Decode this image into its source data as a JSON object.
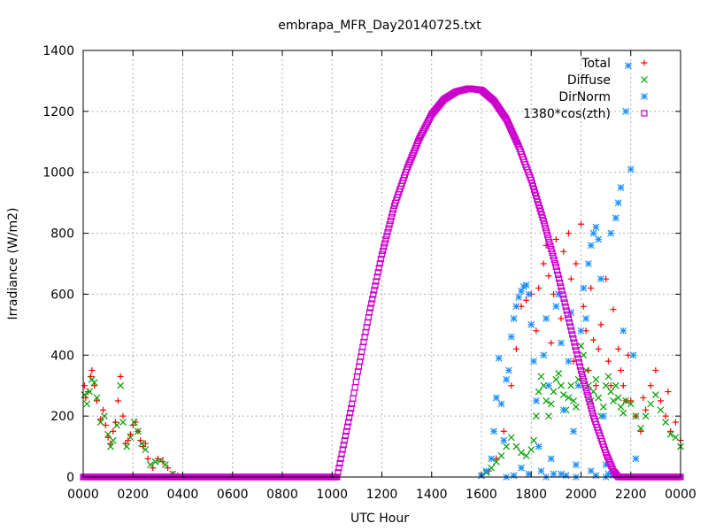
{
  "chart_data": {
    "type": "scatter",
    "title": "embrapa_MFR_Day20140725.txt",
    "xlabel": "UTC Hour",
    "ylabel": "Irradiance (W/m2)",
    "xlim": [
      0,
      24
    ],
    "ylim": [
      0,
      1400
    ],
    "x_ticks": [
      {
        "value": 0,
        "label": "0000"
      },
      {
        "value": 2,
        "label": "0200"
      },
      {
        "value": 4,
        "label": "0400"
      },
      {
        "value": 6,
        "label": "0600"
      },
      {
        "value": 8,
        "label": "0800"
      },
      {
        "value": 10,
        "label": "1000"
      },
      {
        "value": 12,
        "label": "1200"
      },
      {
        "value": 14,
        "label": "1400"
      },
      {
        "value": 16,
        "label": "1600"
      },
      {
        "value": 18,
        "label": "1800"
      },
      {
        "value": 20,
        "label": "2000"
      },
      {
        "value": 22,
        "label": "2200"
      },
      {
        "value": 24,
        "label": "0000"
      }
    ],
    "y_ticks": [
      0,
      200,
      400,
      600,
      800,
      1000,
      1200,
      1400
    ],
    "grid": true,
    "legend_position": "top-right",
    "series": [
      {
        "name": "Total",
        "marker": "plus",
        "color": "#ff0000",
        "points": [
          [
            0.05,
            300
          ],
          [
            0.1,
            260
          ],
          [
            0.2,
            280
          ],
          [
            0.3,
            330
          ],
          [
            0.35,
            350
          ],
          [
            0.45,
            300
          ],
          [
            0.55,
            250
          ],
          [
            0.7,
            190
          ],
          [
            0.8,
            220
          ],
          [
            0.9,
            170
          ],
          [
            1.0,
            130
          ],
          [
            1.1,
            110
          ],
          [
            1.2,
            150
          ],
          [
            1.3,
            180
          ],
          [
            1.4,
            250
          ],
          [
            1.5,
            330
          ],
          [
            1.6,
            200
          ],
          [
            1.7,
            110
          ],
          [
            1.8,
            120
          ],
          [
            1.9,
            140
          ],
          [
            2.0,
            170
          ],
          [
            2.1,
            180
          ],
          [
            2.2,
            150
          ],
          [
            2.3,
            120
          ],
          [
            2.4,
            100
          ],
          [
            2.5,
            110
          ],
          [
            2.6,
            60
          ],
          [
            2.8,
            30
          ],
          [
            3.0,
            60
          ],
          [
            3.2,
            50
          ],
          [
            3.4,
            30
          ],
          [
            3.6,
            10
          ],
          [
            3.8,
            5
          ],
          [
            16.0,
            5
          ],
          [
            16.3,
            20
          ],
          [
            16.6,
            60
          ],
          [
            16.9,
            150
          ],
          [
            17.2,
            300
          ],
          [
            17.4,
            420
          ],
          [
            17.6,
            560
          ],
          [
            17.8,
            580
          ],
          [
            18.0,
            600
          ],
          [
            18.2,
            480
          ],
          [
            18.3,
            620
          ],
          [
            18.5,
            700
          ],
          [
            18.6,
            760
          ],
          [
            18.7,
            660
          ],
          [
            18.9,
            600
          ],
          [
            19.0,
            780
          ],
          [
            19.2,
            520
          ],
          [
            19.3,
            740
          ],
          [
            19.5,
            800
          ],
          [
            19.6,
            650
          ],
          [
            19.8,
            700
          ],
          [
            20.0,
            830
          ],
          [
            20.1,
            560
          ],
          [
            20.2,
            480
          ],
          [
            20.4,
            620
          ],
          [
            20.5,
            450
          ],
          [
            20.6,
            300
          ],
          [
            20.7,
            420
          ],
          [
            20.8,
            500
          ],
          [
            21.0,
            650
          ],
          [
            21.1,
            380
          ],
          [
            21.2,
            300
          ],
          [
            21.3,
            550
          ],
          [
            21.5,
            420
          ],
          [
            21.6,
            350
          ],
          [
            21.7,
            300
          ],
          [
            21.8,
            250
          ],
          [
            22.0,
            250
          ],
          [
            22.2,
            200
          ],
          [
            22.4,
            150
          ],
          [
            22.6,
            220
          ],
          [
            22.8,
            300
          ],
          [
            23.0,
            350
          ],
          [
            23.2,
            250
          ],
          [
            23.4,
            200
          ],
          [
            23.6,
            150
          ],
          [
            23.8,
            180
          ],
          [
            24.0,
            120
          ],
          [
            18.8,
            440
          ],
          [
            19.7,
            380
          ],
          [
            20.3,
            350
          ],
          [
            21.9,
            400
          ],
          [
            22.5,
            260
          ],
          [
            23.5,
            280
          ]
        ]
      },
      {
        "name": "Diffuse",
        "marker": "cross",
        "color": "#00a000",
        "points": [
          [
            0.05,
            270
          ],
          [
            0.15,
            240
          ],
          [
            0.25,
            280
          ],
          [
            0.35,
            320
          ],
          [
            0.45,
            310
          ],
          [
            0.55,
            260
          ],
          [
            0.7,
            180
          ],
          [
            0.85,
            200
          ],
          [
            1.0,
            140
          ],
          [
            1.1,
            100
          ],
          [
            1.2,
            120
          ],
          [
            1.35,
            170
          ],
          [
            1.5,
            300
          ],
          [
            1.6,
            180
          ],
          [
            1.75,
            100
          ],
          [
            1.9,
            130
          ],
          [
            2.05,
            180
          ],
          [
            2.2,
            150
          ],
          [
            2.35,
            110
          ],
          [
            2.5,
            90
          ],
          [
            2.7,
            40
          ],
          [
            2.9,
            50
          ],
          [
            3.1,
            55
          ],
          [
            3.3,
            40
          ],
          [
            3.6,
            10
          ],
          [
            16.0,
            5
          ],
          [
            16.2,
            15
          ],
          [
            16.4,
            30
          ],
          [
            16.6,
            50
          ],
          [
            16.8,
            70
          ],
          [
            17.0,
            100
          ],
          [
            17.2,
            130
          ],
          [
            17.4,
            100
          ],
          [
            17.6,
            80
          ],
          [
            17.8,
            70
          ],
          [
            18.0,
            90
          ],
          [
            18.1,
            120
          ],
          [
            18.2,
            200
          ],
          [
            18.3,
            280
          ],
          [
            18.4,
            330
          ],
          [
            18.5,
            300
          ],
          [
            18.6,
            250
          ],
          [
            18.7,
            200
          ],
          [
            18.8,
            240
          ],
          [
            18.9,
            280
          ],
          [
            19.0,
            320
          ],
          [
            19.1,
            340
          ],
          [
            19.2,
            300
          ],
          [
            19.3,
            270
          ],
          [
            19.4,
            220
          ],
          [
            19.5,
            260
          ],
          [
            19.6,
            300
          ],
          [
            19.7,
            250
          ],
          [
            19.8,
            230
          ],
          [
            19.9,
            320
          ],
          [
            20.0,
            430
          ],
          [
            20.1,
            400
          ],
          [
            20.2,
            350
          ],
          [
            20.3,
            300
          ],
          [
            20.4,
            250
          ],
          [
            20.5,
            280
          ],
          [
            20.6,
            320
          ],
          [
            20.7,
            260
          ],
          [
            20.8,
            200
          ],
          [
            20.9,
            230
          ],
          [
            21.0,
            300
          ],
          [
            21.1,
            330
          ],
          [
            21.2,
            280
          ],
          [
            21.3,
            250
          ],
          [
            21.4,
            300
          ],
          [
            21.5,
            260
          ],
          [
            21.6,
            230
          ],
          [
            21.7,
            210
          ],
          [
            21.8,
            250
          ],
          [
            22.0,
            240
          ],
          [
            22.2,
            200
          ],
          [
            22.4,
            160
          ],
          [
            22.6,
            200
          ],
          [
            22.8,
            240
          ],
          [
            23.0,
            270
          ],
          [
            23.2,
            220
          ],
          [
            23.4,
            180
          ],
          [
            23.6,
            140
          ],
          [
            23.8,
            130
          ],
          [
            24.0,
            100
          ]
        ]
      },
      {
        "name": "DirNorm",
        "marker": "star",
        "color": "#1e90ff",
        "points": [
          [
            16.0,
            5
          ],
          [
            16.2,
            20
          ],
          [
            16.4,
            60
          ],
          [
            16.5,
            150
          ],
          [
            16.6,
            260
          ],
          [
            16.7,
            390
          ],
          [
            16.8,
            240
          ],
          [
            16.9,
            120
          ],
          [
            17.0,
            320
          ],
          [
            17.1,
            350
          ],
          [
            17.2,
            460
          ],
          [
            17.3,
            520
          ],
          [
            17.4,
            560
          ],
          [
            17.5,
            590
          ],
          [
            17.6,
            610
          ],
          [
            17.7,
            625
          ],
          [
            17.8,
            630
          ],
          [
            17.9,
            600
          ],
          [
            18.0,
            500
          ],
          [
            18.1,
            380
          ],
          [
            18.2,
            250
          ],
          [
            18.3,
            100
          ],
          [
            18.4,
            20
          ],
          [
            18.5,
            400
          ],
          [
            18.6,
            520
          ],
          [
            18.7,
            300
          ],
          [
            18.8,
            60
          ],
          [
            18.9,
            10
          ],
          [
            19.0,
            560
          ],
          [
            19.1,
            600
          ],
          [
            19.2,
            440
          ],
          [
            19.3,
            220
          ],
          [
            19.4,
            5
          ],
          [
            19.5,
            380
          ],
          [
            19.6,
            540
          ],
          [
            19.7,
            150
          ],
          [
            19.8,
            40
          ],
          [
            19.9,
            300
          ],
          [
            20.0,
            480
          ],
          [
            20.1,
            620
          ],
          [
            20.2,
            520
          ],
          [
            20.3,
            700
          ],
          [
            20.4,
            760
          ],
          [
            20.5,
            800
          ],
          [
            20.6,
            820
          ],
          [
            20.7,
            780
          ],
          [
            20.8,
            650
          ],
          [
            20.9,
            200
          ],
          [
            21.0,
            40
          ],
          [
            21.1,
            10
          ],
          [
            21.2,
            800
          ],
          [
            21.4,
            850
          ],
          [
            21.5,
            900
          ],
          [
            21.6,
            950
          ],
          [
            21.7,
            480
          ],
          [
            21.8,
            1200
          ],
          [
            21.9,
            1350
          ],
          [
            22.0,
            1010
          ],
          [
            22.1,
            400
          ],
          [
            22.2,
            60
          ],
          [
            17.0,
            0
          ],
          [
            17.3,
            5
          ],
          [
            17.6,
            30
          ],
          [
            17.9,
            10
          ],
          [
            18.6,
            0
          ],
          [
            19.2,
            10
          ],
          [
            19.8,
            0
          ],
          [
            20.4,
            20
          ],
          [
            20.6,
            5
          ],
          [
            21.0,
            0
          ],
          [
            21.3,
            5
          ],
          [
            21.6,
            0
          ],
          [
            22.0,
            0
          ]
        ]
      },
      {
        "name": "1380*cos(zth)",
        "marker": "square",
        "color": "#cc00cc",
        "points": [
          [
            0,
            0
          ],
          [
            1,
            0
          ],
          [
            2,
            0
          ],
          [
            3,
            0
          ],
          [
            4,
            0
          ],
          [
            5,
            0
          ],
          [
            6,
            0
          ],
          [
            7,
            0
          ],
          [
            8,
            0
          ],
          [
            9,
            0
          ],
          [
            10,
            0
          ],
          [
            10.2,
            0
          ],
          [
            10.5,
            120
          ],
          [
            10.8,
            240
          ],
          [
            11.0,
            330
          ],
          [
            11.5,
            540
          ],
          [
            12.0,
            730
          ],
          [
            12.5,
            890
          ],
          [
            13.0,
            1010
          ],
          [
            13.5,
            1110
          ],
          [
            14.0,
            1190
          ],
          [
            14.5,
            1240
          ],
          [
            15.0,
            1265
          ],
          [
            15.5,
            1275
          ],
          [
            16.0,
            1270
          ],
          [
            16.5,
            1235
          ],
          [
            17.0,
            1175
          ],
          [
            17.5,
            1085
          ],
          [
            18.0,
            975
          ],
          [
            18.5,
            840
          ],
          [
            19.0,
            690
          ],
          [
            19.5,
            520
          ],
          [
            20.0,
            350
          ],
          [
            20.5,
            200
          ],
          [
            21.0,
            80
          ],
          [
            21.3,
            20
          ],
          [
            21.5,
            0
          ],
          [
            22,
            0
          ],
          [
            23,
            0
          ],
          [
            24,
            0
          ]
        ]
      }
    ]
  }
}
